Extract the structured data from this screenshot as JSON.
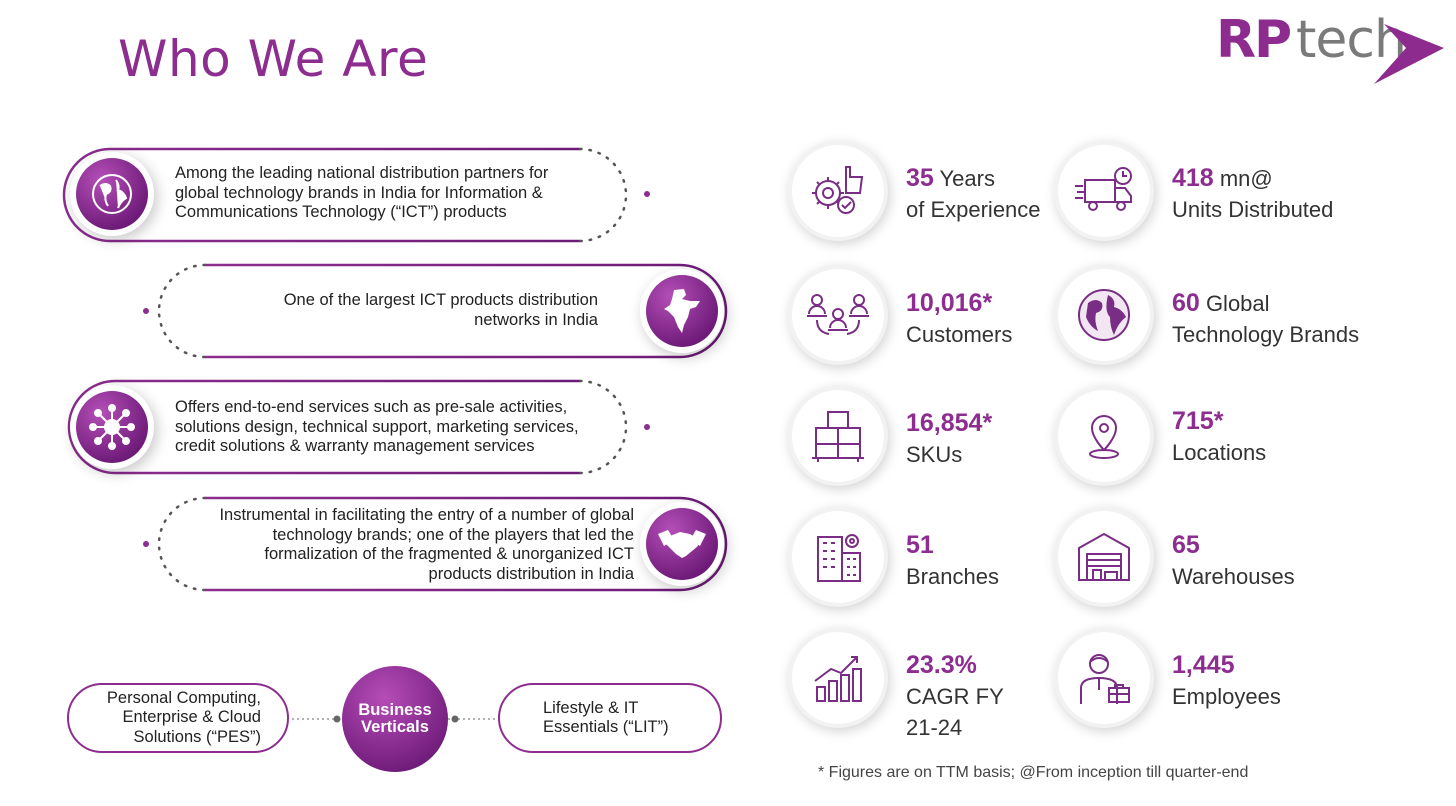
{
  "header": {
    "title": "Who We Are"
  },
  "logo": {
    "rp": "RP",
    "tech": "tech"
  },
  "left": {
    "items": [
      {
        "text": "Among the leading national distribution partners for global technology brands in India for Information & Communications Technology (“ICT”) products",
        "icon": "globe-icon"
      },
      {
        "text": "One of the largest ICT products distribution networks in India",
        "icon": "india-map-icon"
      },
      {
        "text": "Offers end-to-end services such as pre-sale activities, solutions design, technical support, marketing services, credit solutions & warranty management services",
        "icon": "network-hub-icon"
      },
      {
        "text": "Instrumental in facilitating the entry of a number of global technology brands;  one of the players that led the formalization of the fragmented & unorganized ICT products distribution in India",
        "icon": "handshake-icon"
      }
    ],
    "verticals": {
      "center": "Business Verticals",
      "left": "Personal Computing, Enterprise & Cloud Solutions (“PES”)",
      "right": "Lifestyle & IT Essentials (“LIT”)"
    }
  },
  "stats": [
    {
      "value": "35",
      "label_inline": "Years",
      "label": "of Experience",
      "icon": "gear-thumbs-up-icon"
    },
    {
      "value": "418",
      "label_inline": "mn@",
      "label": "Units Distributed",
      "icon": "delivery-truck-icon"
    },
    {
      "value": "10,016*",
      "label_inline": "",
      "label": "Customers",
      "icon": "customer-network-icon"
    },
    {
      "value": "60",
      "label_inline": "Global",
      "label": "Technology Brands",
      "icon": "globe-icon"
    },
    {
      "value": "16,854*",
      "label_inline": "",
      "label": "SKUs",
      "icon": "boxes-icon"
    },
    {
      "value": "715*",
      "label_inline": "",
      "label": "Locations",
      "icon": "location-pin-icon"
    },
    {
      "value": "51",
      "label_inline": "",
      "label": "Branches",
      "icon": "office-building-icon"
    },
    {
      "value": "65",
      "label_inline": "",
      "label": "Warehouses",
      "icon": "warehouse-icon"
    },
    {
      "value": "23.3%",
      "label_inline": "",
      "label": "CAGR FY 21-24",
      "icon": "growth-chart-icon"
    },
    {
      "value": "1,445",
      "label_inline": "",
      "label": "Employees",
      "icon": "employee-icon"
    }
  ],
  "footnote": "* Figures are on TTM basis; @From inception till quarter-end",
  "colors": {
    "accent": "#8c2d8f",
    "accent_dark": "#6d1a78"
  }
}
